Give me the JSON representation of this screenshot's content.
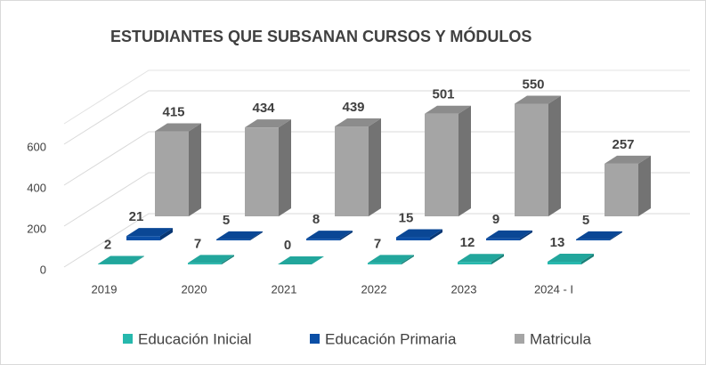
{
  "chart_data": {
    "type": "bar3d",
    "title": "ESTUDIANTES QUE SUBSANAN CURSOS Y MÓDULOS",
    "categories": [
      "2019",
      "2020",
      "2021",
      "2022",
      "2023",
      "2024 - I"
    ],
    "series": [
      {
        "name": "Educación Inicial",
        "color": "#26b8ad",
        "values": [
          2,
          7,
          0,
          7,
          12,
          13
        ]
      },
      {
        "name": "Educación Primaria",
        "color": "#0b4fa6",
        "values": [
          21,
          5,
          8,
          15,
          9,
          5
        ]
      },
      {
        "name": "Matricula",
        "color": "#a5a5a5",
        "values": [
          415,
          434,
          439,
          501,
          550,
          257
        ]
      }
    ],
    "ylim": [
      0,
      700
    ],
    "yticks": [
      0,
      200,
      400,
      600
    ],
    "grid": true,
    "legend": "bottom"
  }
}
